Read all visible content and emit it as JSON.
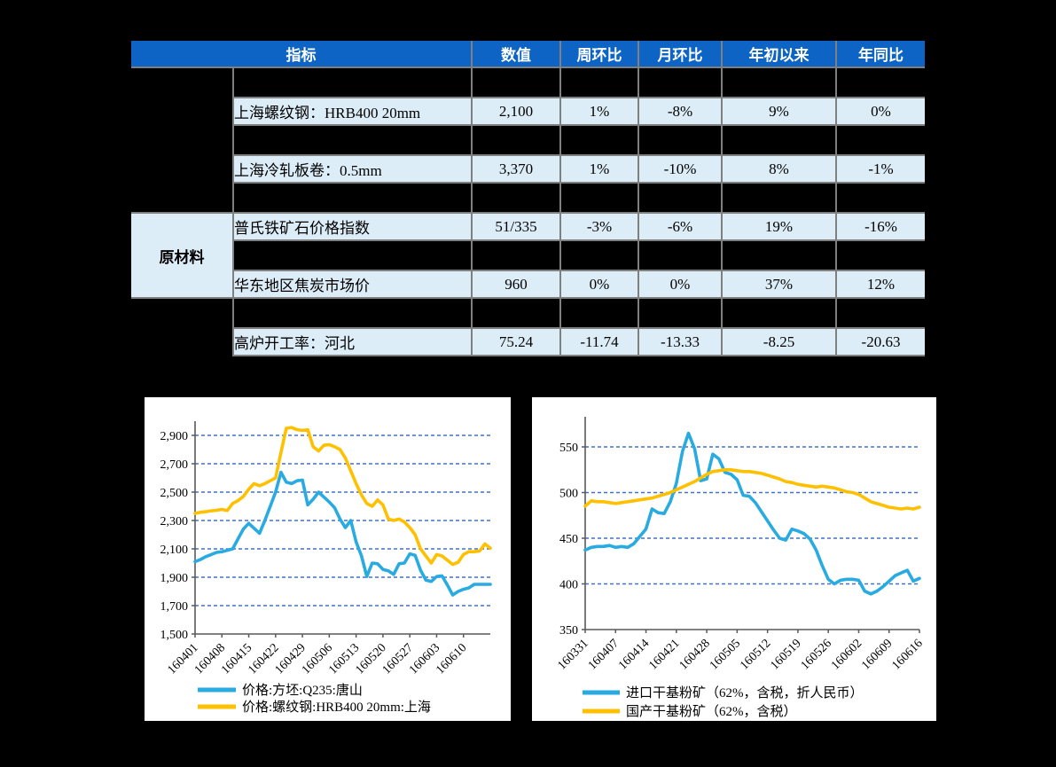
{
  "page": {
    "background": "#000000"
  },
  "table": {
    "columns": [
      "指标",
      "数值",
      "周环比",
      "月环比",
      "年初以来",
      "年同比"
    ],
    "group_label": "原材料",
    "rows": [
      {
        "name": "上海螺纹钢：HRB400 20mm",
        "value": "2,100",
        "wow": "1%",
        "mom": "-8%",
        "ytd": "9%",
        "yoy": "0%"
      },
      {
        "name": "上海冷轧板卷：0.5mm",
        "value": "3,370",
        "wow": "1%",
        "mom": "-10%",
        "ytd": "8%",
        "yoy": "-1%"
      },
      {
        "name": "普氏铁矿石价格指数",
        "value": "51/335",
        "wow": "-3%",
        "mom": "-6%",
        "ytd": "19%",
        "yoy": "-16%"
      },
      {
        "name": "华东地区焦炭市场价",
        "value": "960",
        "wow": "0%",
        "mom": "0%",
        "ytd": "37%",
        "yoy": "12%"
      },
      {
        "name": "高炉开工率：河北",
        "value": "75.24",
        "wow": "-11.74",
        "mom": "-13.33",
        "ytd": "-8.25",
        "yoy": "-20.63"
      }
    ],
    "colors": {
      "header_bg": "#0D64C4",
      "header_text": "#FFFFFF",
      "row_bg": "#DCEDF8",
      "gap_bg": "#000000",
      "grid_line": "#7F7F7F"
    }
  },
  "chart_data": [
    {
      "type": "line",
      "title": "",
      "x_labels": [
        "160401",
        "160408",
        "160415",
        "160422",
        "160429",
        "160506",
        "160513",
        "160520",
        "160527",
        "160603",
        "160610"
      ],
      "label_every": 5,
      "n_points": 56,
      "ylim": [
        1500,
        2900
      ],
      "yticks": [
        {
          "v": 1500,
          "label": "1,500"
        },
        {
          "v": 1700,
          "label": "1,700"
        },
        {
          "v": 1900,
          "label": "1,900"
        },
        {
          "v": 2100,
          "label": "2,100"
        },
        {
          "v": 2300,
          "label": "2,300"
        },
        {
          "v": 2500,
          "label": "2,500"
        },
        {
          "v": 2700,
          "label": "2,700"
        },
        {
          "v": 2900,
          "label": "2,900"
        }
      ],
      "grid_values": [
        1700,
        1900,
        2100,
        2300,
        2500,
        2700,
        2900
      ],
      "grid_on": true,
      "grid_color": "#4472C4",
      "axis_color": "#595959",
      "legend_position": "bottom-left",
      "series": [
        {
          "name": "价格:方坯:Q235:唐山",
          "color": "#29ABE2",
          "values": [
            2010,
            2025,
            2045,
            2060,
            2075,
            2080,
            2090,
            2100,
            2170,
            2240,
            2280,
            2245,
            2210,
            2300,
            2400,
            2500,
            2640,
            2570,
            2560,
            2580,
            2585,
            2410,
            2450,
            2500,
            2465,
            2430,
            2390,
            2310,
            2250,
            2300,
            2150,
            2050,
            1905,
            2000,
            1995,
            1955,
            1945,
            1920,
            1995,
            2000,
            2065,
            2055,
            1950,
            1880,
            1870,
            1905,
            1910,
            1845,
            1775,
            1800,
            1815,
            1825,
            1850,
            1850,
            1850,
            1850
          ]
        },
        {
          "name": "价格:螺纹钢:HRB400 20mm:上海",
          "color": "#FFC000",
          "values": [
            2350,
            2358,
            2362,
            2368,
            2372,
            2378,
            2370,
            2420,
            2440,
            2470,
            2520,
            2560,
            2545,
            2560,
            2580,
            2600,
            2780,
            2950,
            2955,
            2940,
            2935,
            2940,
            2820,
            2790,
            2830,
            2835,
            2820,
            2800,
            2740,
            2650,
            2560,
            2480,
            2420,
            2400,
            2445,
            2410,
            2310,
            2300,
            2310,
            2290,
            2250,
            2200,
            2100,
            2050,
            2000,
            2060,
            2050,
            2020,
            1990,
            2005,
            2060,
            2080,
            2080,
            2085,
            2135,
            2105
          ]
        }
      ]
    },
    {
      "type": "line",
      "title": "",
      "x_labels": [
        "160331",
        "160407",
        "160414",
        "160421",
        "160428",
        "160505",
        "160512",
        "160519",
        "160526",
        "160602",
        "160609",
        "160616"
      ],
      "label_every": 5,
      "n_points": 56,
      "ylim": [
        350,
        550
      ],
      "yticks": [
        {
          "v": 350,
          "label": "350"
        },
        {
          "v": 400,
          "label": "400"
        },
        {
          "v": 450,
          "label": "450"
        },
        {
          "v": 500,
          "label": "500"
        },
        {
          "v": 550,
          "label": "550"
        }
      ],
      "grid_values": [
        400,
        450,
        500,
        550
      ],
      "grid_on": true,
      "grid_color": "#4472C4",
      "axis_color": "#595959",
      "legend_position": "bottom-left",
      "series": [
        {
          "name": "进口干基粉矿（62%，含税，折人民币）",
          "color": "#29ABE2",
          "values": [
            437,
            440,
            441,
            441,
            442,
            440,
            441,
            440,
            444,
            452,
            460,
            482,
            478,
            477,
            490,
            510,
            545,
            565,
            548,
            513,
            515,
            542,
            537,
            522,
            520,
            514,
            497,
            496,
            489,
            479,
            469,
            459,
            450,
            448,
            460,
            458,
            455,
            449,
            437,
            420,
            405,
            400,
            404,
            405,
            405,
            404,
            392,
            389,
            392,
            397,
            403,
            409,
            412,
            415,
            403,
            406
          ]
        },
        {
          "name": "国产干基粉矿（62%，含税）",
          "color": "#FFC000",
          "values": [
            485,
            491,
            490,
            490,
            489,
            488,
            489,
            490,
            491,
            492,
            493,
            494,
            496,
            498,
            500,
            503,
            506,
            509,
            512,
            516,
            520,
            523,
            524,
            525,
            525,
            524,
            523,
            523,
            522,
            521,
            519,
            517,
            515,
            512,
            511,
            509,
            508,
            507,
            506,
            507,
            506,
            505,
            503,
            501,
            500,
            498,
            494,
            490,
            488,
            486,
            484,
            483,
            482,
            483,
            482,
            484
          ]
        }
      ]
    }
  ]
}
